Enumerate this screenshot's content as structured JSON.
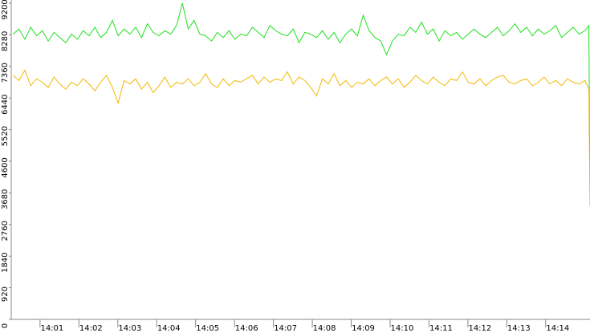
{
  "chart_data": {
    "type": "line",
    "x": [
      840,
      840.15,
      840.3,
      840.45,
      840.6,
      840.75,
      840.9,
      841.05,
      841.2,
      841.35,
      841.5,
      841.65,
      841.8,
      841.95,
      842.1,
      842.25,
      842.4,
      842.55,
      842.7,
      842.85,
      843,
      843.15,
      843.3,
      843.45,
      843.6,
      843.75,
      843.9,
      844.05,
      844.2,
      844.35,
      844.5,
      844.65,
      844.8,
      844.95,
      845.1,
      845.25,
      845.4,
      845.55,
      845.7,
      845.85,
      846,
      846.15,
      846.3,
      846.45,
      846.6,
      846.75,
      846.9,
      847.05,
      847.2,
      847.35,
      847.5,
      847.65,
      847.8,
      847.95,
      848.1,
      848.25,
      848.4,
      848.55,
      848.7,
      848.85,
      849,
      849.15,
      849.3,
      849.45,
      849.6,
      849.75,
      849.9,
      850.05,
      850.2,
      850.35,
      850.5,
      850.65,
      850.8,
      850.95,
      851.1,
      851.25,
      851.4,
      851.55,
      851.7,
      851.85,
      852,
      852.15,
      852.3,
      852.45,
      852.6,
      852.75,
      852.9,
      853.05,
      853.2,
      853.35,
      853.5,
      853.65,
      853.8,
      853.95,
      854.1,
      854.25,
      854.4,
      854.55,
      854.7,
      854.8,
      854.83
    ],
    "series": [
      {
        "color": "#1ee01e",
        "values": [
          8300,
          8450,
          8150,
          8500,
          8250,
          8400,
          8100,
          8350,
          8200,
          8050,
          8300,
          8150,
          8400,
          8250,
          8500,
          8200,
          8350,
          8700,
          8250,
          8450,
          8300,
          8500,
          8200,
          8600,
          8350,
          8250,
          8400,
          8300,
          8550,
          9200,
          8450,
          8700,
          8300,
          8250,
          8100,
          8350,
          8200,
          8400,
          8150,
          8300,
          8250,
          8500,
          8350,
          8200,
          8550,
          8400,
          8300,
          8250,
          8450,
          8050,
          8350,
          8300,
          8200,
          8400,
          8150,
          8350,
          8050,
          8300,
          8450,
          8250,
          8850,
          8400,
          8200,
          8100,
          7700,
          8100,
          8300,
          8250,
          8500,
          8350,
          8650,
          8300,
          8450,
          8100,
          8400,
          8250,
          8350,
          8150,
          8300,
          8450,
          8300,
          8200,
          8350,
          8500,
          8250,
          8400,
          8600,
          8350,
          8500,
          8250,
          8450,
          8300,
          8400,
          8550,
          8200,
          8350,
          8500,
          8300,
          8400,
          8550,
          3500
        ]
      },
      {
        "color": "#f2b800",
        "values": [
          7100,
          6950,
          7250,
          6800,
          7000,
          6900,
          6750,
          7050,
          6850,
          6700,
          6900,
          6800,
          7000,
          6850,
          6650,
          6900,
          7100,
          6750,
          6300,
          6950,
          6850,
          7000,
          6700,
          6900,
          6600,
          6800,
          7050,
          6750,
          6900,
          6850,
          7000,
          6800,
          6900,
          7150,
          6850,
          6750,
          7000,
          6800,
          6950,
          6900,
          7000,
          7100,
          6850,
          7050,
          6900,
          7000,
          6950,
          7200,
          6850,
          7050,
          6950,
          6750,
          6500,
          7000,
          6850,
          7150,
          6800,
          6950,
          6750,
          6900,
          6850,
          7000,
          6800,
          6950,
          7050,
          6850,
          7000,
          6750,
          6900,
          7100,
          6950,
          6850,
          7050,
          6900,
          6800,
          7000,
          6950,
          7200,
          6900,
          6850,
          7000,
          6800,
          6950,
          7050,
          7100,
          6900,
          6850,
          6950,
          7000,
          6800,
          6900,
          7050,
          6850,
          6950,
          6800,
          7000,
          6900,
          6850,
          6950,
          6700,
          3300
        ]
      }
    ],
    "xlim": [
      839.95,
      854.83
    ],
    "xticks": [
      {
        "value": 841,
        "label": "14:01"
      },
      {
        "value": 842,
        "label": "14:02"
      },
      {
        "value": 843,
        "label": "14:03"
      },
      {
        "value": 844,
        "label": "14:04"
      },
      {
        "value": 845,
        "label": "14:05"
      },
      {
        "value": 846,
        "label": "14:06"
      },
      {
        "value": 847,
        "label": "14:07"
      },
      {
        "value": 848,
        "label": "14:08"
      },
      {
        "value": 849,
        "label": "14:09"
      },
      {
        "value": 850,
        "label": "14:10"
      },
      {
        "value": 851,
        "label": "14:11"
      },
      {
        "value": 852,
        "label": "14:12"
      },
      {
        "value": 853,
        "label": "14:13"
      },
      {
        "value": 854,
        "label": "14:14"
      }
    ],
    "ylim": [
      0,
      9200
    ],
    "yticks": [
      0,
      920,
      1840,
      2760,
      3680,
      4600,
      5520,
      6440,
      7360,
      8280,
      9200
    ]
  }
}
